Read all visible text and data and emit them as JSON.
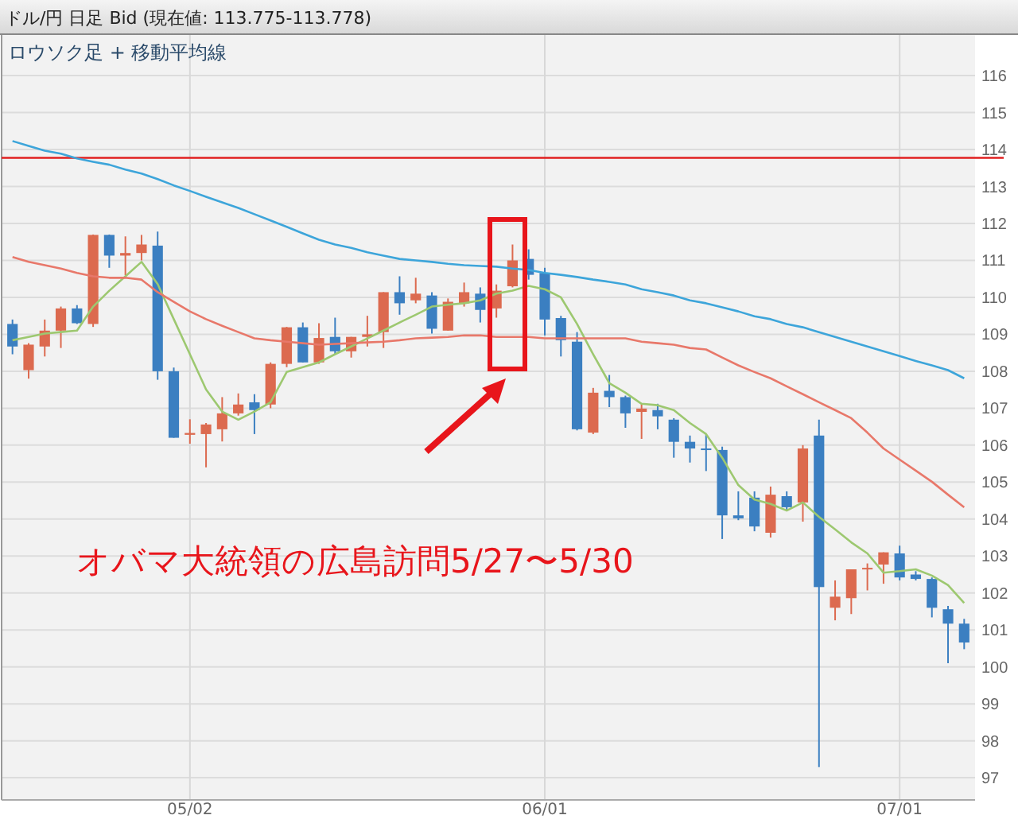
{
  "chart_data": {
    "type": "candlestick",
    "title": "ドル/円 日足 Bid (現在値: 113.775-113.778)",
    "subtitle": "ロウソク足 + 移動平均線",
    "annotations": [
      "オバマ大統領の広島訪問5/27〜5/30"
    ],
    "categories": [
      null,
      null,
      null,
      null,
      null,
      null,
      null,
      null,
      null,
      null,
      null,
      "05/02",
      null,
      null,
      null,
      null,
      null,
      null,
      null,
      null,
      null,
      null,
      null,
      null,
      null,
      null,
      null,
      null,
      null,
      null,
      null,
      null,
      null,
      "06/01",
      null,
      null,
      null,
      null,
      null,
      null,
      null,
      null,
      null,
      null,
      null,
      null,
      null,
      null,
      null,
      null,
      null,
      null,
      null,
      null,
      null,
      "07/01",
      null,
      null,
      null,
      null
    ],
    "ohlc": [
      [
        109.28,
        109.4,
        108.46,
        108.67
      ],
      [
        108.03,
        108.76,
        107.8,
        108.72
      ],
      [
        108.67,
        109.4,
        108.4,
        109.1
      ],
      [
        109.1,
        109.75,
        108.63,
        109.7
      ],
      [
        109.7,
        109.79,
        109.28,
        109.3
      ],
      [
        109.28,
        111.7,
        109.2,
        111.69
      ],
      [
        111.69,
        111.7,
        110.8,
        111.13
      ],
      [
        111.13,
        111.65,
        110.6,
        111.2
      ],
      [
        111.2,
        111.69,
        111.0,
        111.43
      ],
      [
        111.4,
        111.78,
        107.77,
        108.0
      ],
      [
        108.0,
        108.1,
        106.2,
        106.2
      ],
      [
        106.28,
        106.7,
        106.04,
        106.33
      ],
      [
        106.3,
        106.6,
        105.4,
        106.56
      ],
      [
        106.43,
        107.3,
        106.1,
        106.86
      ],
      [
        106.86,
        107.4,
        106.8,
        107.1
      ],
      [
        107.16,
        107.38,
        106.3,
        106.95
      ],
      [
        107.1,
        108.24,
        107.0,
        108.2
      ],
      [
        108.2,
        109.2,
        108.11,
        109.19
      ],
      [
        109.19,
        109.32,
        108.24,
        108.24
      ],
      [
        108.24,
        109.3,
        108.2,
        108.9
      ],
      [
        108.93,
        109.45,
        108.46,
        108.54
      ],
      [
        108.54,
        108.93,
        108.37,
        108.93
      ],
      [
        108.93,
        109.5,
        108.67,
        109.0
      ],
      [
        109.06,
        110.14,
        108.63,
        110.14
      ],
      [
        110.14,
        110.57,
        109.53,
        109.84
      ],
      [
        109.92,
        110.53,
        109.84,
        110.1
      ],
      [
        110.05,
        110.14,
        109.02,
        109.15
      ],
      [
        109.1,
        109.97,
        109.1,
        109.88
      ],
      [
        109.84,
        110.4,
        109.75,
        110.14
      ],
      [
        110.1,
        110.27,
        109.32,
        109.66
      ],
      [
        109.7,
        110.35,
        109.45,
        110.18
      ],
      [
        110.3,
        111.43,
        110.27,
        111.0
      ],
      [
        111.04,
        111.3,
        110.48,
        110.61
      ],
      [
        110.66,
        110.8,
        108.97,
        109.4
      ],
      [
        109.44,
        109.5,
        108.4,
        108.84
      ],
      [
        108.8,
        109.06,
        106.4,
        106.43
      ],
      [
        106.34,
        107.55,
        106.3,
        107.42
      ],
      [
        107.47,
        107.9,
        107.03,
        107.3
      ],
      [
        107.3,
        107.34,
        106.47,
        106.86
      ],
      [
        106.9,
        107.1,
        106.17,
        106.99
      ],
      [
        106.95,
        107.12,
        106.43,
        106.78
      ],
      [
        106.69,
        106.73,
        105.66,
        106.09
      ],
      [
        106.09,
        106.26,
        105.53,
        105.91
      ],
      [
        105.91,
        106.3,
        105.3,
        105.87
      ],
      [
        105.87,
        105.96,
        103.46,
        104.1
      ],
      [
        104.1,
        104.75,
        103.97,
        104.02
      ],
      [
        104.58,
        104.75,
        103.67,
        103.8
      ],
      [
        103.63,
        104.88,
        103.5,
        104.66
      ],
      [
        104.62,
        104.75,
        104.23,
        104.32
      ],
      [
        104.45,
        106.0,
        103.93,
        105.91
      ],
      [
        106.26,
        106.69,
        97.29,
        102.16
      ],
      [
        101.6,
        102.34,
        101.26,
        101.9
      ],
      [
        101.86,
        102.64,
        101.43,
        102.64
      ],
      [
        102.64,
        102.8,
        102.07,
        102.68
      ],
      [
        102.77,
        103.1,
        102.25,
        103.1
      ],
      [
        103.07,
        103.28,
        102.34,
        102.42
      ],
      [
        102.5,
        102.59,
        102.34,
        102.38
      ],
      [
        102.38,
        102.42,
        101.34,
        101.6
      ],
      [
        101.56,
        101.65,
        100.1,
        101.17
      ],
      [
        101.17,
        101.3,
        100.48,
        100.66
      ]
    ],
    "colors": [
      "#3b7fc1",
      "#dc6a4f",
      "#dc6a4f",
      "#dc6a4f",
      "#3b7fc1",
      "#dc6a4f",
      "#3b7fc1",
      "#dc6a4f",
      "#dc6a4f",
      "#3b7fc1",
      "#3b7fc1",
      "#dc6a4f",
      "#dc6a4f",
      "#dc6a4f",
      "#dc6a4f",
      "#3b7fc1",
      "#dc6a4f",
      "#dc6a4f",
      "#3b7fc1",
      "#dc6a4f",
      "#3b7fc1",
      "#dc6a4f",
      "#dc6a4f",
      "#dc6a4f",
      "#3b7fc1",
      "#dc6a4f",
      "#3b7fc1",
      "#dc6a4f",
      "#dc6a4f",
      "#3b7fc1",
      "#dc6a4f",
      "#dc6a4f",
      "#3b7fc1",
      "#3b7fc1",
      "#3b7fc1",
      "#3b7fc1",
      "#dc6a4f",
      "#3b7fc1",
      "#3b7fc1",
      "#dc6a4f",
      "#3b7fc1",
      "#3b7fc1",
      "#3b7fc1",
      "#3b7fc1",
      "#3b7fc1",
      "#3b7fc1",
      "#3b7fc1",
      "#dc6a4f",
      "#3b7fc1",
      "#dc6a4f",
      "#3b7fc1",
      "#dc6a4f",
      "#dc6a4f",
      "#dc6a4f",
      "#dc6a4f",
      "#3b7fc1",
      "#3b7fc1",
      "#3b7fc1",
      "#3b7fc1",
      "#3b7fc1"
    ],
    "series": [
      {
        "type": "line",
        "color": "#9dc870",
        "values": [
          108.84,
          108.93,
          109.02,
          109.06,
          109.1,
          109.75,
          110.18,
          110.57,
          110.96,
          110.36,
          109.41,
          108.46,
          107.51,
          106.91,
          106.69,
          106.91,
          107.16,
          107.98,
          108.11,
          108.24,
          108.46,
          108.67,
          108.89,
          109.1,
          109.32,
          109.53,
          109.75,
          109.8,
          109.84,
          109.92,
          110.1,
          110.18,
          110.31,
          110.22,
          110.0,
          109.28,
          108.46,
          107.68,
          107.42,
          107.12,
          107.08,
          106.95,
          106.6,
          106.3,
          105.66,
          104.92,
          104.53,
          104.41,
          104.23,
          104.45,
          104.06,
          103.72,
          103.37,
          103.07,
          102.55,
          102.59,
          102.64,
          102.47,
          102.21,
          101.73
        ]
      },
      {
        "type": "line",
        "color": "#e8786a",
        "values": [
          111.09,
          110.96,
          110.87,
          110.78,
          110.66,
          110.57,
          110.53,
          110.53,
          110.48,
          110.14,
          109.88,
          109.62,
          109.41,
          109.23,
          109.06,
          108.89,
          108.84,
          108.8,
          108.76,
          108.72,
          108.74,
          108.76,
          108.78,
          108.8,
          108.84,
          108.89,
          108.91,
          108.93,
          108.97,
          108.97,
          108.93,
          108.93,
          108.93,
          108.89,
          108.89,
          108.89,
          108.89,
          108.89,
          108.89,
          108.8,
          108.76,
          108.72,
          108.63,
          108.59,
          108.37,
          108.16,
          107.98,
          107.81,
          107.59,
          107.38,
          107.16,
          106.95,
          106.73,
          106.34,
          105.91,
          105.61,
          105.31,
          105.01,
          104.66,
          104.32
        ]
      },
      {
        "type": "line",
        "color": "#3da5da",
        "values": [
          114.23,
          114.1,
          113.97,
          113.89,
          113.76,
          113.67,
          113.59,
          113.46,
          113.35,
          113.2,
          113.03,
          112.88,
          112.72,
          112.57,
          112.42,
          112.25,
          112.08,
          111.91,
          111.73,
          111.56,
          111.43,
          111.34,
          111.22,
          111.13,
          111.04,
          111.0,
          110.96,
          110.91,
          110.87,
          110.85,
          110.83,
          110.78,
          110.74,
          110.66,
          110.61,
          110.55,
          110.48,
          110.42,
          110.35,
          110.22,
          110.14,
          110.05,
          109.92,
          109.84,
          109.73,
          109.62,
          109.49,
          109.41,
          109.28,
          109.19,
          109.06,
          108.93,
          108.8,
          108.67,
          108.54,
          108.41,
          108.28,
          108.16,
          108.03,
          107.81
        ]
      }
    ],
    "ylim": [
      96.4,
      117.1
    ],
    "yticks": [
      97,
      98,
      99,
      100,
      101,
      102,
      103,
      104,
      105,
      106,
      107,
      108,
      109,
      110,
      111,
      112,
      113,
      114,
      115,
      116
    ],
    "grid": true,
    "line_style": "solid",
    "marker": "none",
    "ref_lines": [
      {
        "axis": "y",
        "value": 113.775,
        "color": "#e02020"
      }
    ]
  }
}
